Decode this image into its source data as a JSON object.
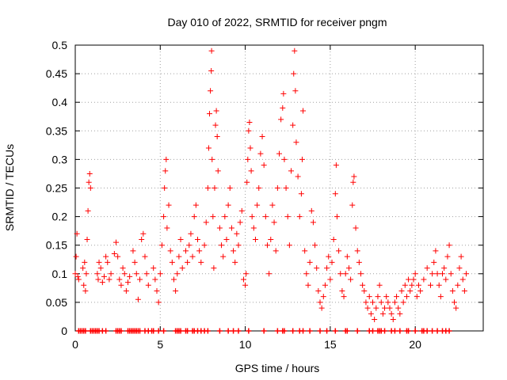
{
  "chart_data": {
    "type": "scatter",
    "title": "Day 010 of 2022, SRMTID for receiver pngm",
    "xlabel": "GPS time / hours",
    "ylabel": "SRMTID / TECUs",
    "xlim": [
      0,
      24
    ],
    "ylim": [
      0,
      0.5
    ],
    "xticks": [
      0,
      5,
      10,
      15,
      20
    ],
    "xtick_labels": [
      "0",
      "5",
      "10",
      "15",
      "20"
    ],
    "yticks": [
      0,
      0.05,
      0.1,
      0.15,
      0.2,
      0.25,
      0.3,
      0.35,
      0.4,
      0.45,
      0.5
    ],
    "ytick_labels": [
      "0",
      "0.05",
      "0.1",
      "0.15",
      "0.2",
      "0.25",
      "0.3",
      "0.35",
      "0.4",
      "0.45",
      "0.5"
    ],
    "grid": true,
    "marker": "+",
    "color": "#ff0000",
    "series": [
      {
        "name": "SRMTID",
        "points": [
          [
            0.0,
            0.1
          ],
          [
            0.05,
            0.13
          ],
          [
            0.1,
            0.17
          ],
          [
            0.15,
            0.095
          ],
          [
            0.2,
            0.09
          ],
          [
            0.45,
            0.11
          ],
          [
            0.5,
            0.08
          ],
          [
            0.55,
            0.12
          ],
          [
            0.6,
            0.07
          ],
          [
            0.65,
            0.1
          ],
          [
            0.7,
            0.16
          ],
          [
            0.75,
            0.21
          ],
          [
            0.8,
            0.26
          ],
          [
            0.85,
            0.275
          ],
          [
            0.9,
            0.25
          ],
          [
            1.3,
            0.1
          ],
          [
            1.35,
            0.09
          ],
          [
            1.4,
            0.12
          ],
          [
            1.5,
            0.11
          ],
          [
            1.6,
            0.085
          ],
          [
            1.7,
            0.095
          ],
          [
            1.8,
            0.13
          ],
          [
            1.9,
            0.12
          ],
          [
            2.0,
            0.09
          ],
          [
            2.1,
            0.1
          ],
          [
            2.3,
            0.135
          ],
          [
            2.4,
            0.155
          ],
          [
            2.5,
            0.13
          ],
          [
            2.6,
            0.09
          ],
          [
            2.7,
            0.08
          ],
          [
            2.8,
            0.11
          ],
          [
            2.9,
            0.1
          ],
          [
            3.0,
            0.07
          ],
          [
            3.1,
            0.085
          ],
          [
            3.2,
            0.095
          ],
          [
            3.4,
            0.14
          ],
          [
            3.5,
            0.12
          ],
          [
            3.6,
            0.1
          ],
          [
            3.7,
            0.055
          ],
          [
            3.8,
            0.09
          ],
          [
            3.9,
            0.16
          ],
          [
            4.0,
            0.17
          ],
          [
            4.1,
            0.13
          ],
          [
            4.2,
            0.1
          ],
          [
            4.3,
            0.08
          ],
          [
            4.6,
            0.11
          ],
          [
            4.7,
            0.09
          ],
          [
            4.8,
            0.07
          ],
          [
            4.9,
            0.05
          ],
          [
            5.0,
            0.1
          ],
          [
            5.1,
            0.15
          ],
          [
            5.2,
            0.2
          ],
          [
            5.25,
            0.25
          ],
          [
            5.3,
            0.28
          ],
          [
            5.35,
            0.3
          ],
          [
            5.4,
            0.18
          ],
          [
            5.5,
            0.22
          ],
          [
            5.6,
            0.14
          ],
          [
            5.7,
            0.12
          ],
          [
            5.8,
            0.09
          ],
          [
            5.9,
            0.07
          ],
          [
            6.0,
            0.1
          ],
          [
            6.1,
            0.13
          ],
          [
            6.2,
            0.16
          ],
          [
            6.3,
            0.11
          ],
          [
            6.5,
            0.14
          ],
          [
            6.6,
            0.12
          ],
          [
            6.7,
            0.15
          ],
          [
            6.8,
            0.17
          ],
          [
            6.9,
            0.13
          ],
          [
            7.0,
            0.2
          ],
          [
            7.1,
            0.22
          ],
          [
            7.2,
            0.16
          ],
          [
            7.3,
            0.14
          ],
          [
            7.4,
            0.12
          ],
          [
            7.6,
            0.15
          ],
          [
            7.7,
            0.19
          ],
          [
            7.8,
            0.25
          ],
          [
            7.85,
            0.32
          ],
          [
            7.9,
            0.38
          ],
          [
            7.95,
            0.42
          ],
          [
            8.0,
            0.455
          ],
          [
            8.02,
            0.49
          ],
          [
            8.05,
            0.3
          ],
          [
            8.1,
            0.2
          ],
          [
            8.15,
            0.11
          ],
          [
            8.2,
            0.25
          ],
          [
            8.25,
            0.36
          ],
          [
            8.3,
            0.385
          ],
          [
            8.35,
            0.34
          ],
          [
            8.4,
            0.28
          ],
          [
            8.5,
            0.18
          ],
          [
            8.6,
            0.15
          ],
          [
            8.7,
            0.13
          ],
          [
            8.8,
            0.2
          ],
          [
            8.9,
            0.16
          ],
          [
            9.0,
            0.22
          ],
          [
            9.1,
            0.25
          ],
          [
            9.2,
            0.18
          ],
          [
            9.3,
            0.14
          ],
          [
            9.4,
            0.12
          ],
          [
            9.5,
            0.17
          ],
          [
            9.6,
            0.15
          ],
          [
            9.7,
            0.19
          ],
          [
            9.8,
            0.21
          ],
          [
            9.9,
            0.09
          ],
          [
            10.0,
            0.08
          ],
          [
            10.05,
            0.1
          ],
          [
            10.1,
            0.26
          ],
          [
            10.15,
            0.3
          ],
          [
            10.2,
            0.35
          ],
          [
            10.25,
            0.365
          ],
          [
            10.3,
            0.32
          ],
          [
            10.35,
            0.28
          ],
          [
            10.4,
            0.2
          ],
          [
            10.5,
            0.18
          ],
          [
            10.6,
            0.16
          ],
          [
            10.7,
            0.22
          ],
          [
            10.8,
            0.25
          ],
          [
            10.9,
            0.31
          ],
          [
            11.0,
            0.34
          ],
          [
            11.1,
            0.29
          ],
          [
            11.2,
            0.2
          ],
          [
            11.3,
            0.15
          ],
          [
            11.4,
            0.1
          ],
          [
            11.5,
            0.16
          ],
          [
            11.6,
            0.22
          ],
          [
            11.7,
            0.19
          ],
          [
            11.8,
            0.14
          ],
          [
            11.9,
            0.25
          ],
          [
            12.0,
            0.31
          ],
          [
            12.1,
            0.37
          ],
          [
            12.2,
            0.39
          ],
          [
            12.25,
            0.415
          ],
          [
            12.3,
            0.3
          ],
          [
            12.4,
            0.25
          ],
          [
            12.5,
            0.2
          ],
          [
            12.6,
            0.15
          ],
          [
            12.7,
            0.28
          ],
          [
            12.8,
            0.36
          ],
          [
            12.85,
            0.45
          ],
          [
            12.9,
            0.49
          ],
          [
            12.95,
            0.42
          ],
          [
            13.0,
            0.33
          ],
          [
            13.1,
            0.27
          ],
          [
            13.2,
            0.2
          ],
          [
            13.3,
            0.24
          ],
          [
            13.35,
            0.3
          ],
          [
            13.4,
            0.385
          ],
          [
            13.5,
            0.14
          ],
          [
            13.6,
            0.1
          ],
          [
            13.7,
            0.08
          ],
          [
            13.8,
            0.12
          ],
          [
            13.9,
            0.21
          ],
          [
            14.0,
            0.19
          ],
          [
            14.1,
            0.15
          ],
          [
            14.2,
            0.11
          ],
          [
            14.3,
            0.07
          ],
          [
            14.4,
            0.05
          ],
          [
            14.5,
            0.04
          ],
          [
            14.6,
            0.06
          ],
          [
            14.7,
            0.08
          ],
          [
            14.8,
            0.11
          ],
          [
            14.9,
            0.13
          ],
          [
            15.0,
            0.09
          ],
          [
            15.1,
            0.12
          ],
          [
            15.2,
            0.16
          ],
          [
            15.3,
            0.24
          ],
          [
            15.35,
            0.29
          ],
          [
            15.4,
            0.2
          ],
          [
            15.5,
            0.14
          ],
          [
            15.6,
            0.1
          ],
          [
            15.7,
            0.07
          ],
          [
            15.8,
            0.06
          ],
          [
            15.9,
            0.1
          ],
          [
            16.0,
            0.13
          ],
          [
            16.1,
            0.11
          ],
          [
            16.2,
            0.09
          ],
          [
            16.3,
            0.22
          ],
          [
            16.35,
            0.26
          ],
          [
            16.4,
            0.27
          ],
          [
            16.5,
            0.18
          ],
          [
            16.6,
            0.14
          ],
          [
            16.7,
            0.12
          ],
          [
            16.8,
            0.1
          ],
          [
            16.9,
            0.08
          ],
          [
            17.0,
            0.07
          ],
          [
            17.1,
            0.05
          ],
          [
            17.2,
            0.04
          ],
          [
            17.3,
            0.06
          ],
          [
            17.4,
            0.03
          ],
          [
            17.5,
            0.05
          ],
          [
            17.6,
            0.02
          ],
          [
            17.7,
            0.04
          ],
          [
            17.8,
            0.06
          ],
          [
            17.9,
            0.08
          ],
          [
            18.0,
            0.05
          ],
          [
            18.1,
            0.03
          ],
          [
            18.2,
            0.04
          ],
          [
            18.3,
            0.06
          ],
          [
            18.4,
            0.05
          ],
          [
            18.5,
            0.04
          ],
          [
            18.6,
            0.03
          ],
          [
            18.7,
            0.02
          ],
          [
            18.8,
            0.05
          ],
          [
            18.9,
            0.06
          ],
          [
            19.0,
            0.04
          ],
          [
            19.1,
            0.03
          ],
          [
            19.2,
            0.07
          ],
          [
            19.3,
            0.05
          ],
          [
            19.4,
            0.08
          ],
          [
            19.5,
            0.06
          ],
          [
            19.6,
            0.09
          ],
          [
            19.7,
            0.07
          ],
          [
            19.8,
            0.08
          ],
          [
            19.9,
            0.09
          ],
          [
            20.0,
            0.1
          ],
          [
            20.1,
            0.06
          ],
          [
            20.2,
            0.08
          ],
          [
            20.3,
            0.07
          ],
          [
            20.5,
            0.09
          ],
          [
            20.7,
            0.11
          ],
          [
            20.9,
            0.08
          ],
          [
            21.0,
            0.1
          ],
          [
            21.1,
            0.12
          ],
          [
            21.2,
            0.14
          ],
          [
            21.3,
            0.1
          ],
          [
            21.4,
            0.08
          ],
          [
            21.5,
            0.06
          ],
          [
            21.6,
            0.1
          ],
          [
            21.7,
            0.11
          ],
          [
            21.8,
            0.09
          ],
          [
            21.9,
            0.13
          ],
          [
            22.0,
            0.15
          ],
          [
            22.1,
            0.1
          ],
          [
            22.2,
            0.07
          ],
          [
            22.3,
            0.05
          ],
          [
            22.4,
            0.04
          ],
          [
            22.5,
            0.08
          ],
          [
            22.6,
            0.11
          ],
          [
            22.7,
            0.13
          ],
          [
            22.8,
            0.09
          ],
          [
            22.9,
            0.07
          ],
          [
            23.0,
            0.1
          ]
        ],
        "zero_points": [
          0.2,
          0.3,
          0.4,
          0.5,
          0.6,
          0.9,
          1.0,
          1.1,
          1.2,
          1.3,
          1.4,
          1.6,
          1.8,
          2.4,
          2.5,
          2.6,
          2.7,
          3.1,
          3.2,
          3.3,
          3.4,
          3.5,
          3.6,
          3.7,
          3.8,
          4.1,
          4.3,
          4.5,
          4.6,
          4.9,
          5.2,
          5.9,
          6.0,
          6.1,
          6.2,
          6.5,
          6.6,
          6.9,
          7.0,
          7.2,
          7.4,
          7.6,
          7.8,
          8.5,
          9.0,
          9.3,
          9.6,
          10.2,
          11.1,
          11.9,
          12.2,
          12.3,
          12.8,
          13.2,
          13.4,
          13.8,
          14.4,
          14.8,
          15.3,
          15.9,
          16.0,
          16.6,
          17.3,
          17.5,
          17.8,
          17.9,
          18.0,
          18.2,
          18.6,
          18.8,
          19.1,
          19.5,
          19.6,
          20.0,
          20.4,
          20.5,
          20.7,
          21.0,
          21.3,
          21.6,
          21.8,
          22.0
        ]
      }
    ]
  }
}
